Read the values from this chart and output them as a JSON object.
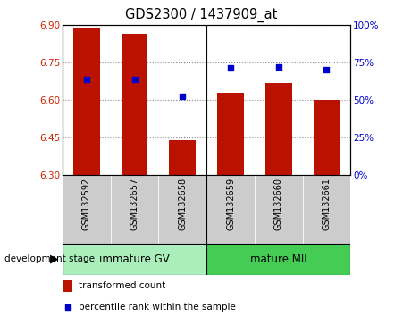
{
  "title": "GDS2300 / 1437909_at",
  "categories": [
    "GSM132592",
    "GSM132657",
    "GSM132658",
    "GSM132659",
    "GSM132660",
    "GSM132661"
  ],
  "bar_values": [
    6.89,
    6.865,
    6.44,
    6.63,
    6.67,
    6.6
  ],
  "bar_base": 6.3,
  "percentile_values": [
    6.682,
    6.682,
    6.617,
    6.73,
    6.733,
    6.722
  ],
  "ylim": [
    6.3,
    6.9
  ],
  "yticks_left": [
    6.3,
    6.45,
    6.6,
    6.75,
    6.9
  ],
  "yticks_right": [
    0,
    25,
    50,
    75,
    100
  ],
  "bar_color": "#bb1100",
  "blue_color": "#0000cc",
  "immature_color": "#aaeebb",
  "mature_color": "#44cc55",
  "group_labels": [
    "immature GV",
    "mature MII"
  ],
  "left_axis_color": "#cc2200",
  "right_axis_color": "#0000cc",
  "grid_color": "#888888",
  "xtick_bg": "#cccccc"
}
